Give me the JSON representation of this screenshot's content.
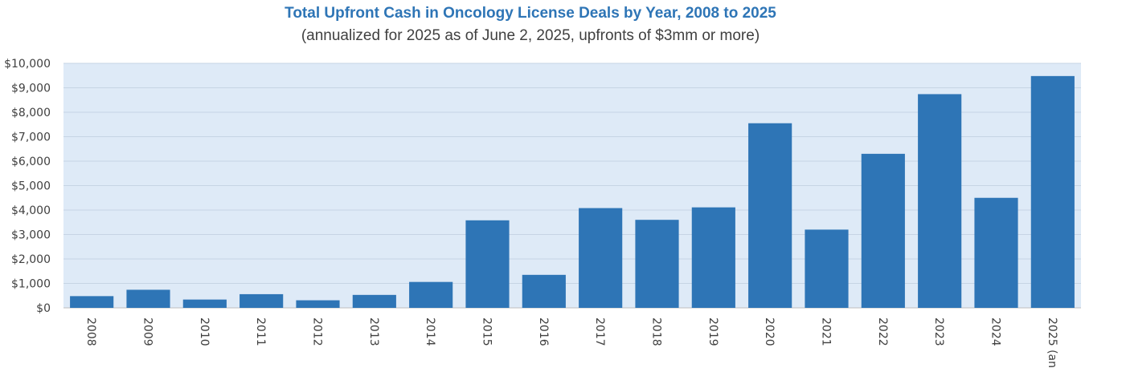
{
  "chart_data": {
    "type": "bar",
    "title": "Total Upfront Cash in Oncology License Deals by Year, 2008 to 2025",
    "subtitle": "(annualized for 2025 as of June 2, 2025, upfronts of $3mm or more)",
    "xlabel": "",
    "ylabel": "",
    "categories": [
      "2008",
      "2009",
      "2010",
      "2011",
      "2012",
      "2013",
      "2014",
      "2015",
      "2016",
      "2017",
      "2018",
      "2019",
      "2020",
      "2021",
      "2022",
      "2023",
      "2024",
      "2025 (an"
    ],
    "values": [
      480,
      740,
      340,
      560,
      310,
      530,
      1060,
      3580,
      1350,
      4080,
      3600,
      4110,
      7550,
      3200,
      6300,
      8740,
      4500,
      9480
    ],
    "ylim": [
      0,
      10000
    ],
    "yticks": [
      "$0",
      "$1,000",
      "$2,000",
      "$3,000",
      "$4,000",
      "$5,000",
      "$6,000",
      "$7,000",
      "$8,000",
      "$9,000",
      "$10,000"
    ],
    "grid": true,
    "colors": {
      "bar": "#2e75b6",
      "plot_bg": "#deeaf7",
      "grid": "#c6d4e4",
      "title": "#2e75b6"
    }
  }
}
